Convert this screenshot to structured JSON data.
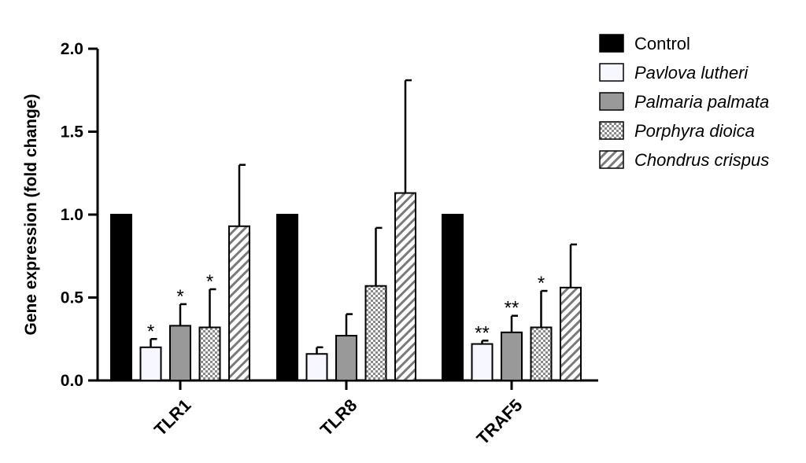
{
  "chart_data": {
    "type": "bar",
    "title": "",
    "xlabel": "",
    "ylabel": "Gene expression (fold change)",
    "ylim": [
      0,
      2.0
    ],
    "yticks": [
      "0.0",
      "0.5",
      "1.0",
      "1.5",
      "2.0"
    ],
    "grid": false,
    "legend_position": "top-right",
    "categories": [
      "TLR1",
      "TLR8",
      "TRAF5"
    ],
    "series": [
      {
        "name": "Control",
        "fill": "solid",
        "color": "#000000",
        "italic": false,
        "values": [
          1.0,
          1.0,
          1.0
        ],
        "errors": [
          0,
          0,
          0
        ],
        "significance": [
          "",
          "",
          ""
        ]
      },
      {
        "name": "Pavlova lutheri",
        "fill": "white",
        "color": "#f7f7ff",
        "italic": true,
        "values": [
          0.2,
          0.16,
          0.22
        ],
        "errors": [
          0.05,
          0.04,
          0.02
        ],
        "significance": [
          "*",
          "",
          "**"
        ]
      },
      {
        "name": "Palmaria palmata",
        "fill": "gray",
        "color": "#999999",
        "italic": true,
        "values": [
          0.33,
          0.27,
          0.29
        ],
        "errors": [
          0.13,
          0.13,
          0.1
        ],
        "significance": [
          "*",
          "",
          "**"
        ]
      },
      {
        "name": "Porphyra dioica",
        "fill": "checker",
        "color": "#c8c8c8",
        "italic": true,
        "values": [
          0.32,
          0.57,
          0.32
        ],
        "errors": [
          0.23,
          0.35,
          0.22
        ],
        "significance": [
          "*",
          "",
          "*"
        ]
      },
      {
        "name": "Chondrus crispus",
        "fill": "hatch",
        "color": "#888888",
        "italic": true,
        "values": [
          0.93,
          1.13,
          0.56
        ],
        "errors": [
          0.37,
          0.68,
          0.26
        ],
        "significance": [
          "",
          "",
          ""
        ]
      }
    ]
  }
}
